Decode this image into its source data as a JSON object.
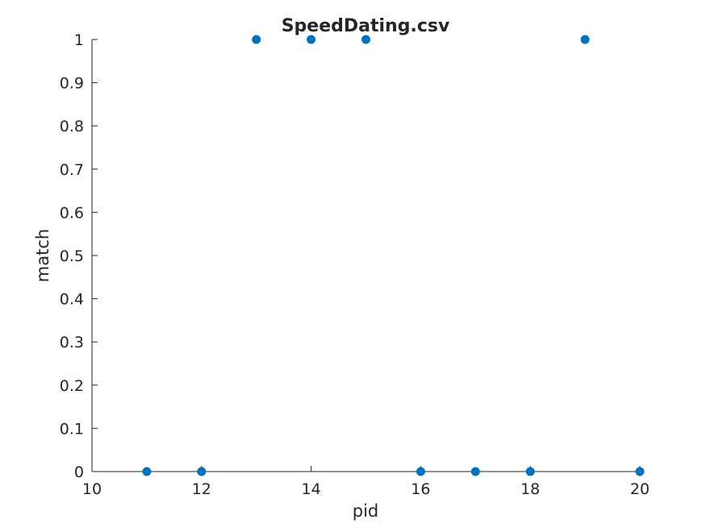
{
  "chart_data": {
    "type": "scatter",
    "title": "SpeedDating.csv",
    "xlabel": "pid",
    "ylabel": "match",
    "xlim": [
      10,
      20
    ],
    "ylim": [
      0,
      1
    ],
    "xticks": [
      10,
      12,
      14,
      16,
      18,
      20
    ],
    "yticks": [
      0,
      0.1,
      0.2,
      0.3,
      0.4,
      0.5,
      0.6,
      0.7,
      0.8,
      0.9,
      1
    ],
    "xticklabels": [
      "10",
      "12",
      "14",
      "16",
      "18",
      "20"
    ],
    "yticklabels": [
      "0",
      "0.1",
      "0.2",
      "0.3",
      "0.4",
      "0.5",
      "0.6",
      "0.7",
      "0.8",
      "0.9",
      "1"
    ],
    "grid": false,
    "legend": null,
    "colors": {
      "marker": "#0072BD",
      "axis": "#262626"
    },
    "points": [
      {
        "x": 11,
        "y": 0
      },
      {
        "x": 12,
        "y": 0
      },
      {
        "x": 13,
        "y": 1
      },
      {
        "x": 14,
        "y": 1
      },
      {
        "x": 15,
        "y": 1
      },
      {
        "x": 16,
        "y": 0
      },
      {
        "x": 17,
        "y": 0
      },
      {
        "x": 18,
        "y": 0
      },
      {
        "x": 19,
        "y": 1
      },
      {
        "x": 20,
        "y": 0
      }
    ]
  }
}
